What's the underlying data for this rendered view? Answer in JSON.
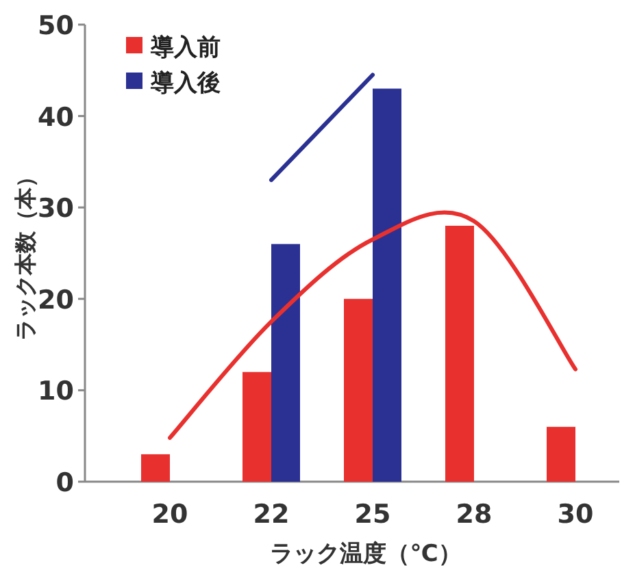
{
  "chart_data": {
    "type": "bar",
    "xlabel": "ラック温度（℃）",
    "ylabel": "ラック本数（本）",
    "categories": [
      "20",
      "22",
      "25",
      "28",
      "30"
    ],
    "ylim": [
      0,
      50
    ],
    "yticks": [
      0,
      10,
      20,
      30,
      40,
      50
    ],
    "legend": "top left",
    "grid": false,
    "series": [
      {
        "name": "導入前",
        "color": "#e8312f",
        "values": [
          3,
          12,
          20,
          28,
          6
        ]
      },
      {
        "name": "導入後",
        "color": "#2b3192",
        "values": [
          null,
          26,
          43,
          null,
          null
        ]
      },
      {
        "type": "line",
        "color": "#e8312f",
        "values": [
          4.8,
          17.5,
          26.5,
          28.5,
          12.3
        ]
      },
      {
        "type": "line",
        "color": "#2b3192",
        "values": [
          null,
          33,
          44.5,
          null,
          null
        ]
      }
    ]
  }
}
